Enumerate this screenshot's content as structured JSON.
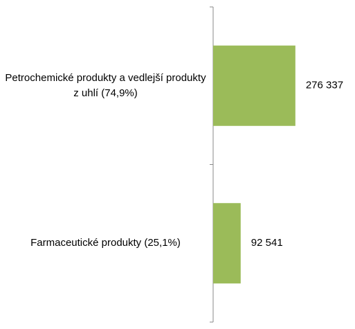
{
  "chart_data": {
    "type": "bar",
    "orientation": "horizontal",
    "categories": [
      "Petrochemické produkty a vedlejší produkty z uhlí (74,9%)",
      "Farmaceutické produkty (25,1%)"
    ],
    "values": [
      276337,
      92541
    ],
    "value_labels": [
      "276 337",
      "92 541"
    ],
    "color": "#9bbb59",
    "xlim": [
      0,
      400000
    ]
  }
}
